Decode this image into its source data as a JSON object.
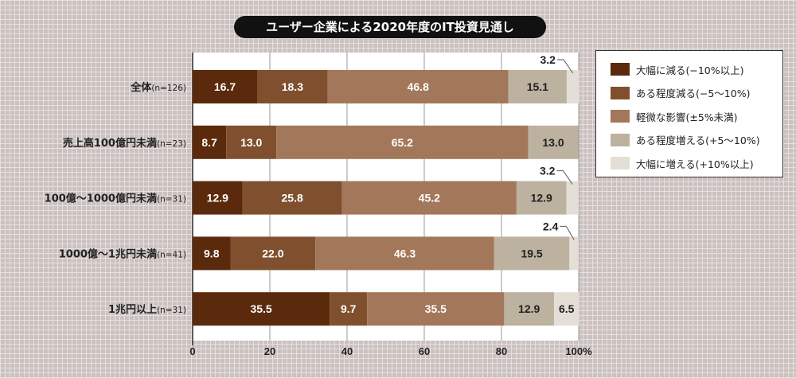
{
  "chart_data": {
    "type": "bar",
    "orientation": "horizontal",
    "stacked": true,
    "title": "ユーザー企業による2020年度のIT投資見通し",
    "categories": [
      {
        "label": "全体",
        "n": "(n=126)"
      },
      {
        "label": "売上高100億円未満",
        "n": "(n=23)"
      },
      {
        "label": "100億～1000億円未満",
        "n": "(n=31)"
      },
      {
        "label": "1000億～1兆円未満",
        "n": "(n=41)"
      },
      {
        "label": "1兆円以上",
        "n": "(n=31)"
      }
    ],
    "series": [
      {
        "name": "大幅に減る(−10%以上)",
        "color": "#5b2a0c",
        "values": [
          16.7,
          8.7,
          12.9,
          9.8,
          35.5
        ]
      },
      {
        "name": "ある程度減る(−5～10%)",
        "color": "#80502e",
        "values": [
          18.3,
          13.0,
          25.8,
          22.0,
          9.7
        ]
      },
      {
        "name": "軽微な影響(±5%未満)",
        "color": "#a3775a",
        "values": [
          46.8,
          65.2,
          45.2,
          46.3,
          35.5
        ]
      },
      {
        "name": "ある程度増える(+5～10%)",
        "color": "#bdb29f",
        "values": [
          15.1,
          13.0,
          12.9,
          19.5,
          12.9
        ]
      },
      {
        "name": "大幅に増える(+10%以上)",
        "color": "#e4dfd6",
        "values": [
          3.2,
          0,
          3.2,
          2.4,
          6.5
        ]
      }
    ],
    "xlim": [
      0,
      100
    ],
    "xticks": [
      "0",
      "20",
      "40",
      "60",
      "80",
      "100%"
    ],
    "grid": true,
    "legend_position": "right"
  }
}
